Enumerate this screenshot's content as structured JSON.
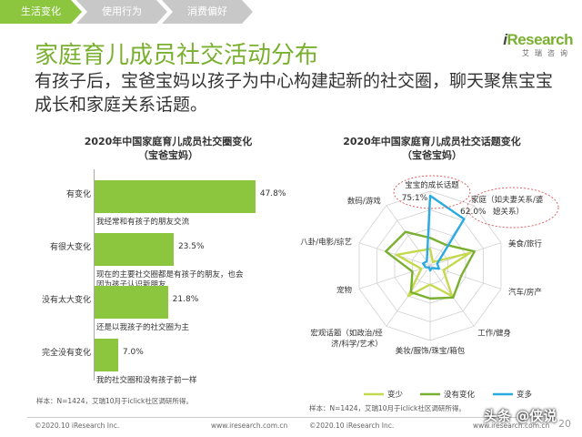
{
  "tabs": [
    {
      "label": "生活变化",
      "active": true
    },
    {
      "label": "使用行为",
      "active": false
    },
    {
      "label": "消费偏好",
      "active": false
    }
  ],
  "logo": {
    "main_i": "i",
    "main_rest": "Research",
    "sub": "艾瑞咨询"
  },
  "title": "家庭育儿成员社交活动分布",
  "subtitle": "有孩子后，宝爸宝妈以孩子为中心构建起新的社交圈，聊天聚焦宝宝成长和家庭关系话题。",
  "left_chart": {
    "title_line1": "2020年中国家庭育儿成员社交圈变化",
    "title_line2": "（宝爸宝妈）",
    "source": "样本：N=1424，艾瑞10月于iclick社区调研所得。"
  },
  "right_chart": {
    "title_line1": "2020年中国家庭育儿成员社交话题变化",
    "title_line2": "（宝爸宝妈）",
    "source": "样本：N=1424，艾瑞10月于iclick社区调研所得。",
    "callout1": {
      "label": "宝宝的成长话题",
      "value": "75.1%"
    },
    "callout2": {
      "label_line1": "家庭（如夫妻关系/婆",
      "label_line2": "媳关系）",
      "value": "62.0%"
    }
  },
  "chart_data": [
    {
      "type": "bar",
      "orientation": "horizontal",
      "categories": [
        "有变化",
        "有很大变化",
        "没有太大变化",
        "完全没有变化"
      ],
      "values": [
        47.8,
        23.5,
        21.8,
        7.0
      ],
      "value_labels": [
        "47.8%",
        "23.5%",
        "21.8%",
        "7.0%"
      ],
      "notes": [
        [
          "我经常和有孩子的朋友交流"
        ],
        [
          "现在的主要社交圈都是有孩子的朋友，也会",
          "因为孩子认识新朋友"
        ],
        [
          "还是以我孩子的社交圈为主"
        ],
        [
          "我的社交圈和没有孩子前一样"
        ]
      ],
      "xlim": [
        0,
        50
      ]
    },
    {
      "type": "radar",
      "categories": [
        "宝宝的成长话题",
        "家庭（如夫妻关系/婆媳关系）",
        "美食/旅行",
        "汽车/房产",
        "工作/健身",
        "美妆/服饰/珠宝/箱包",
        "宏观话题（如政治/经济/科学/艺术）",
        "宠物",
        "明星八卦/电影/综艺",
        "数码/游戏"
      ],
      "axis_labels": [
        [
          "宝宝的成长话题"
        ],
        [
          "家庭（如夫妻关系/婆",
          "媳关系）"
        ],
        [
          "美食/旅行"
        ],
        [
          "汽车/房产"
        ],
        [
          "工作/健身"
        ],
        [
          "美妆/服饰/珠宝/箱包"
        ],
        [
          "宏观话题（如政治/经",
          "济/科学/艺术）"
        ],
        [
          "宠物"
        ],
        [
          "明星八卦/电影/综艺"
        ],
        [
          "数码/游戏"
        ]
      ],
      "rlim": [
        0,
        80
      ],
      "series": [
        {
          "name": "变少",
          "color": "#c5d94e",
          "values": [
            18,
            5,
            45,
            15,
            40,
            20,
            40,
            10,
            38,
            20
          ]
        },
        {
          "name": "没有变化",
          "color": "#7ab030",
          "values": [
            30,
            28,
            50,
            35,
            42,
            35,
            35,
            20,
            50,
            45
          ]
        },
        {
          "name": "变多",
          "color": "#29abe2",
          "values": [
            75.1,
            62.0,
            8,
            10,
            3,
            5,
            2,
            5,
            8,
            6
          ]
        }
      ],
      "legend_position": "bottom"
    }
  ],
  "footer": {
    "copyright_left": "©2020.10 iResearch Inc.",
    "url_left": "www.iresearch.com.cn",
    "copyright_right": "©2020.10 iResearch Inc.",
    "url_right": "www.iresearch.com.cn",
    "page": "20"
  },
  "watermark": "头条 @侠说"
}
